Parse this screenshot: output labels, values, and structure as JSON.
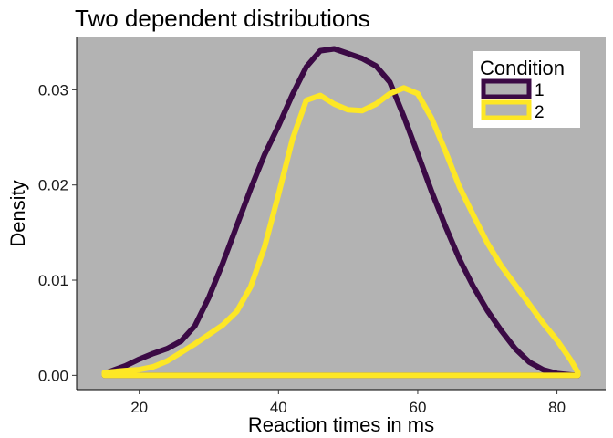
{
  "chart_data": {
    "type": "area",
    "title": "Two dependent distributions",
    "xlabel": "Reaction times in ms",
    "ylabel": "Density",
    "xlim": [
      11,
      87
    ],
    "ylim": [
      -0.0015,
      0.0355
    ],
    "xticks": [
      20,
      40,
      60,
      80
    ],
    "yticks": [
      0.0,
      0.01,
      0.02,
      0.03
    ],
    "ytick_labels": [
      "0.00",
      "0.01",
      "0.02",
      "0.03"
    ],
    "grid": false,
    "legend": {
      "title": "Condition",
      "position": "top-right"
    },
    "series": [
      {
        "name": "1",
        "color": "#3b0a45",
        "x": [
          15,
          18,
          20,
          22,
          24,
          26,
          28,
          30,
          32,
          34,
          36,
          38,
          40,
          42,
          44,
          46,
          48,
          50,
          52,
          54,
          56,
          58,
          60,
          62,
          64,
          66,
          68,
          70,
          72,
          74,
          76,
          78,
          80,
          82,
          83
        ],
        "y": [
          0.0002,
          0.001,
          0.0017,
          0.0023,
          0.0028,
          0.0036,
          0.0052,
          0.0082,
          0.0118,
          0.0157,
          0.0196,
          0.0232,
          0.0262,
          0.0295,
          0.0324,
          0.0341,
          0.0343,
          0.0338,
          0.0333,
          0.0325,
          0.0308,
          0.0272,
          0.0233,
          0.0193,
          0.0156,
          0.0122,
          0.0093,
          0.0068,
          0.0047,
          0.0028,
          0.0014,
          0.0006,
          0.0002,
          5e-05,
          0.0
        ]
      },
      {
        "name": "2",
        "color": "#fde725",
        "x": [
          15,
          18,
          20,
          22,
          24,
          26,
          28,
          30,
          32,
          34,
          36,
          38,
          40,
          42,
          44,
          46,
          48,
          50,
          52,
          54,
          56,
          58,
          60,
          62,
          64,
          66,
          68,
          70,
          72,
          74,
          76,
          78,
          80,
          82,
          83
        ],
        "y": [
          0.0003,
          0.0005,
          0.0006,
          0.0009,
          0.0015,
          0.0024,
          0.0033,
          0.0043,
          0.0053,
          0.0067,
          0.0093,
          0.0135,
          0.019,
          0.0248,
          0.0289,
          0.0294,
          0.0285,
          0.0279,
          0.0278,
          0.0285,
          0.0296,
          0.0302,
          0.0296,
          0.027,
          0.0235,
          0.0198,
          0.0168,
          0.0139,
          0.0115,
          0.0095,
          0.0075,
          0.0055,
          0.0037,
          0.0016,
          0.0003
        ]
      }
    ]
  }
}
